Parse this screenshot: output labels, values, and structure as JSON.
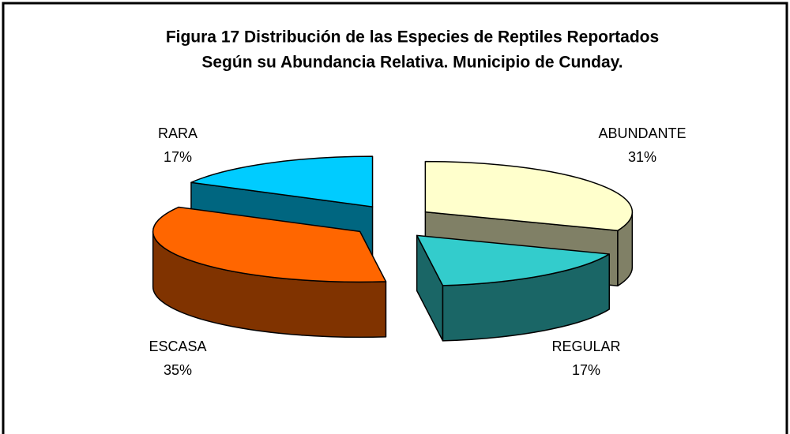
{
  "chart_data": {
    "type": "pie3d",
    "title": [
      "Figura 17  Distribución de las Especies de Reptiles Reportados",
      "Según su Abundancia Relativa. Municipio de Cunday."
    ],
    "categories": [
      "ABUNDANTE",
      "REGULAR",
      "ESCASA",
      "RARA"
    ],
    "values": [
      31,
      17,
      35,
      17
    ],
    "value_labels": [
      "31%",
      "17%",
      "35%",
      "17%"
    ],
    "colors": [
      "#ffffcc",
      "#33cccc",
      "#ff6600",
      "#00ccff"
    ]
  }
}
